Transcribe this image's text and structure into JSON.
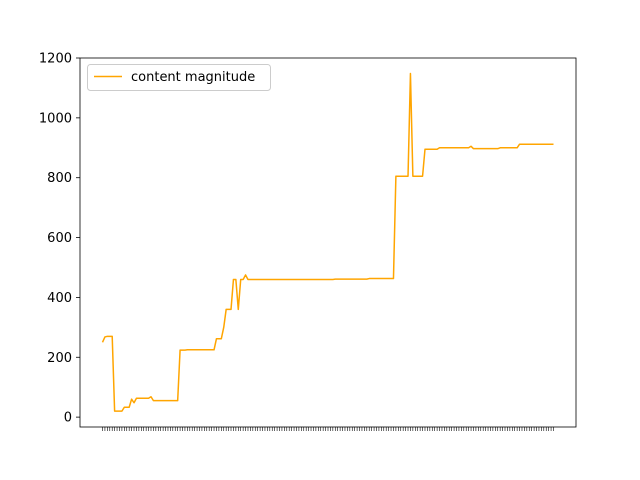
{
  "chart_data": {
    "type": "line",
    "title": "",
    "xlabel": "",
    "ylabel": "",
    "ylim": [
      -33,
      1200
    ],
    "yticks": [
      0,
      200,
      400,
      600,
      800,
      1000,
      1200
    ],
    "xtick_labels_visible": false,
    "grid": false,
    "legend": {
      "placement": "top-left"
    },
    "series": [
      {
        "name": "content magnitude",
        "color": "#ffa500",
        "values": [
          250,
          268,
          270,
          270,
          270,
          20,
          20,
          20,
          20,
          33,
          33,
          33,
          60,
          48,
          63,
          63,
          63,
          63,
          63,
          63,
          68,
          55,
          55,
          55,
          55,
          55,
          55,
          55,
          55,
          55,
          55,
          55,
          224,
          224,
          224,
          225,
          225,
          225,
          225,
          225,
          225,
          225,
          225,
          225,
          225,
          225,
          225,
          262,
          262,
          262,
          300,
          360,
          360,
          360,
          460,
          460,
          360,
          460,
          460,
          475,
          460,
          460,
          460,
          460,
          460,
          460,
          460,
          460,
          460,
          460,
          460,
          460,
          460,
          460,
          460,
          460,
          460,
          460,
          460,
          460,
          460,
          460,
          460,
          460,
          460,
          460,
          460,
          460,
          460,
          460,
          460,
          460,
          460,
          460,
          460,
          460,
          461,
          461,
          461,
          461,
          461,
          461,
          461,
          461,
          461,
          461,
          461,
          461,
          461,
          461,
          463,
          463,
          463,
          463,
          463,
          463,
          463,
          463,
          463,
          463,
          463,
          805,
          805,
          805,
          805,
          805,
          805,
          1148,
          805,
          805,
          805,
          805,
          805,
          895,
          895,
          895,
          895,
          895,
          895,
          900,
          900,
          900,
          900,
          900,
          900,
          900,
          900,
          900,
          900,
          900,
          900,
          900,
          905,
          897,
          897,
          897,
          897,
          897,
          897,
          897,
          897,
          897,
          897,
          897,
          900,
          900,
          900,
          900,
          900,
          900,
          900,
          900,
          912,
          912,
          912,
          912,
          912,
          912,
          912,
          912,
          912,
          912,
          912,
          912,
          912,
          912,
          912
        ]
      }
    ]
  }
}
